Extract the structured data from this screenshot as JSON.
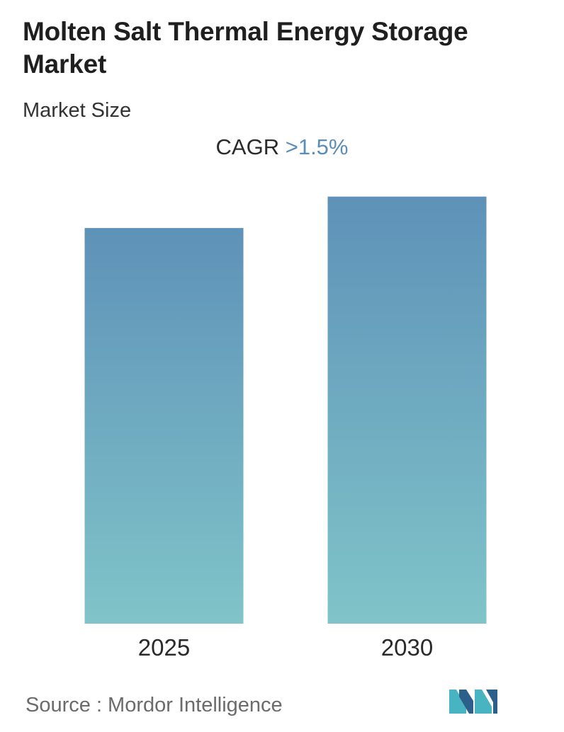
{
  "header": {
    "title": "Molten Salt Thermal Energy Storage Market",
    "subtitle": "Market Size"
  },
  "cagr": {
    "label": "CAGR",
    "value": ">1.5%"
  },
  "footer": {
    "source": "Source :  Mordor Intelligence"
  },
  "colors": {
    "bar_top": "#5e92b8",
    "bar_bottom": "#80c4c9",
    "accent": "#5a8db8",
    "logo_dark": "#2c5f8a",
    "logo_light": "#48b3c1"
  },
  "chart_data": {
    "type": "bar",
    "categories": [
      "2025",
      "2030"
    ],
    "values": [
      94.5,
      102
    ],
    "ylim": [
      0,
      105
    ],
    "grid": false,
    "axis_values_shown": false,
    "title": "",
    "xlabel": "",
    "ylabel": ""
  }
}
